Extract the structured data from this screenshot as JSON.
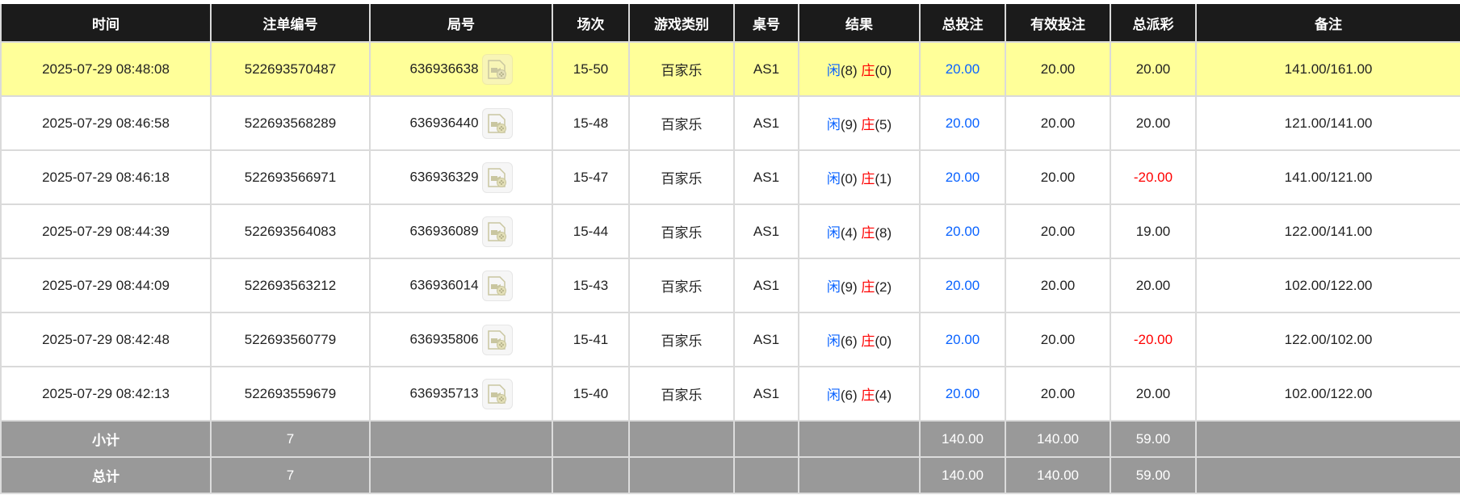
{
  "headers": [
    "时间",
    "注单编号",
    "局号",
    "场次",
    "游戏类别",
    "桌号",
    "结果",
    "总投注",
    "有效投注",
    "总派彩",
    "备注"
  ],
  "colors": {
    "header_bg": "#1b1b1b",
    "highlight_row": "#ffff99",
    "player": "#0a63ff",
    "banker": "#ff0000",
    "negative": "#ff0000",
    "summary_bg": "#999999"
  },
  "rows": [
    {
      "time": "2025-07-29 08:48:08",
      "bet_id": "522693570487",
      "round": "636936638",
      "shoe": "15-50",
      "game": "百家乐",
      "table": "AS1",
      "player_label": "闲",
      "player_score": "(8)",
      "banker_label": "庄",
      "banker_score": "(0)",
      "total_bet": "20.00",
      "valid_bet": "20.00",
      "payout": "20.00",
      "payout_negative": false,
      "remark": "141.00/161.00",
      "highlighted": true
    },
    {
      "time": "2025-07-29 08:46:58",
      "bet_id": "522693568289",
      "round": "636936440",
      "shoe": "15-48",
      "game": "百家乐",
      "table": "AS1",
      "player_label": "闲",
      "player_score": "(9)",
      "banker_label": "庄",
      "banker_score": "(5)",
      "total_bet": "20.00",
      "valid_bet": "20.00",
      "payout": "20.00",
      "payout_negative": false,
      "remark": "121.00/141.00",
      "highlighted": false
    },
    {
      "time": "2025-07-29 08:46:18",
      "bet_id": "522693566971",
      "round": "636936329",
      "shoe": "15-47",
      "game": "百家乐",
      "table": "AS1",
      "player_label": "闲",
      "player_score": "(0)",
      "banker_label": "庄",
      "banker_score": "(1)",
      "total_bet": "20.00",
      "valid_bet": "20.00",
      "payout": "-20.00",
      "payout_negative": true,
      "remark": "141.00/121.00",
      "highlighted": false
    },
    {
      "time": "2025-07-29 08:44:39",
      "bet_id": "522693564083",
      "round": "636936089",
      "shoe": "15-44",
      "game": "百家乐",
      "table": "AS1",
      "player_label": "闲",
      "player_score": "(4)",
      "banker_label": "庄",
      "banker_score": "(8)",
      "total_bet": "20.00",
      "valid_bet": "20.00",
      "payout": "19.00",
      "payout_negative": false,
      "remark": "122.00/141.00",
      "highlighted": false
    },
    {
      "time": "2025-07-29 08:44:09",
      "bet_id": "522693563212",
      "round": "636936014",
      "shoe": "15-43",
      "game": "百家乐",
      "table": "AS1",
      "player_label": "闲",
      "player_score": "(9)",
      "banker_label": "庄",
      "banker_score": "(2)",
      "total_bet": "20.00",
      "valid_bet": "20.00",
      "payout": "20.00",
      "payout_negative": false,
      "remark": "102.00/122.00",
      "highlighted": false
    },
    {
      "time": "2025-07-29 08:42:48",
      "bet_id": "522693560779",
      "round": "636935806",
      "shoe": "15-41",
      "game": "百家乐",
      "table": "AS1",
      "player_label": "闲",
      "player_score": "(6)",
      "banker_label": "庄",
      "banker_score": "(0)",
      "total_bet": "20.00",
      "valid_bet": "20.00",
      "payout": "-20.00",
      "payout_negative": true,
      "remark": "122.00/102.00",
      "highlighted": false
    },
    {
      "time": "2025-07-29 08:42:13",
      "bet_id": "522693559679",
      "round": "636935713",
      "shoe": "15-40",
      "game": "百家乐",
      "table": "AS1",
      "player_label": "闲",
      "player_score": "(6)",
      "banker_label": "庄",
      "banker_score": "(4)",
      "total_bet": "20.00",
      "valid_bet": "20.00",
      "payout": "20.00",
      "payout_negative": false,
      "remark": "102.00/122.00",
      "highlighted": false
    }
  ],
  "summary": [
    {
      "label": "小计",
      "count": "7",
      "total_bet": "140.00",
      "valid_bet": "140.00",
      "payout": "59.00"
    },
    {
      "label": "总计",
      "count": "7",
      "total_bet": "140.00",
      "valid_bet": "140.00",
      "payout": "59.00"
    }
  ]
}
